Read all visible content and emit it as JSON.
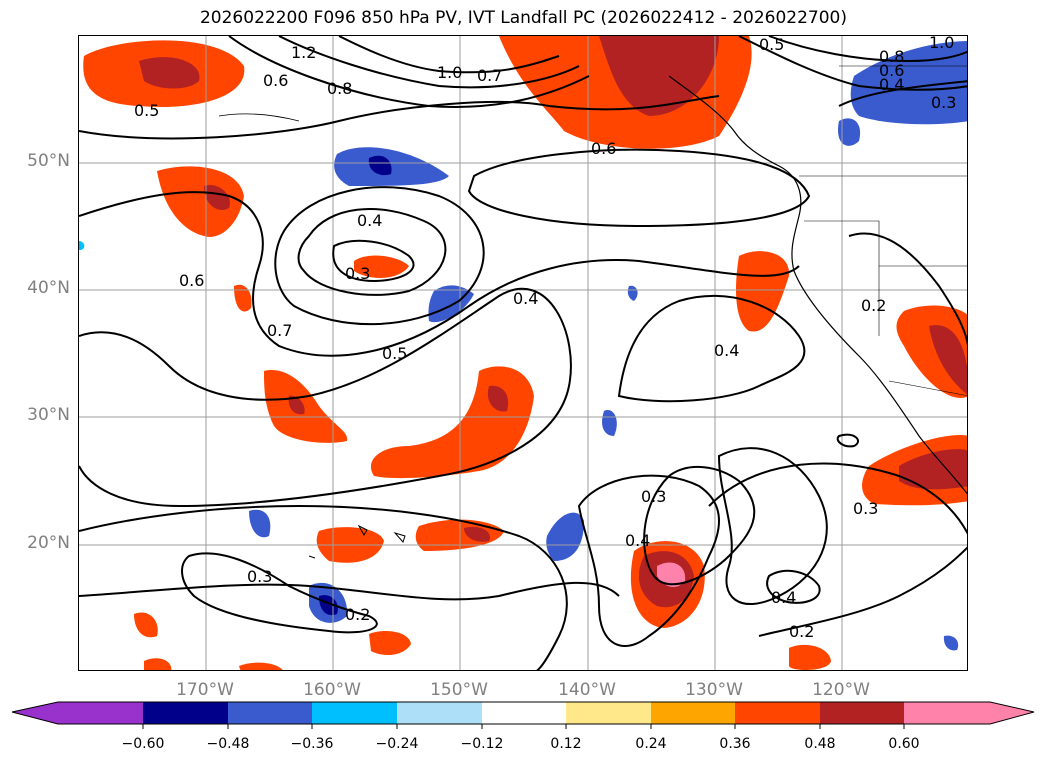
{
  "title": "2026022200 F096 850 hPa PV, IVT Landfall PC (2026022412 - 2026022700)",
  "map": {
    "projection": "plate-carree",
    "lon_range": [
      -180,
      -110
    ],
    "lat_range": [
      10,
      60
    ],
    "lat_labels": [
      {
        "value": 50,
        "text": "50°N"
      },
      {
        "value": 40,
        "text": "40°N"
      },
      {
        "value": 30,
        "text": "30°N"
      },
      {
        "value": 20,
        "text": "20°N"
      }
    ],
    "lon_labels": [
      {
        "value": -170,
        "text": "170°W"
      },
      {
        "value": -160,
        "text": "160°W"
      },
      {
        "value": -150,
        "text": "150°W"
      },
      {
        "value": -140,
        "text": "140°W"
      },
      {
        "value": -130,
        "text": "130°W"
      },
      {
        "value": -120,
        "text": "120°W"
      }
    ],
    "grid": true,
    "contour_labels": [
      "1.2",
      "0.8",
      "1.0",
      "0.7",
      "0.5",
      "0.6",
      "1.0",
      "0.8",
      "0.6",
      "0.4",
      "0.3",
      "0.5",
      "0.6",
      "0.4",
      "0.3",
      "0.6",
      "0.7",
      "0.4",
      "0.5",
      "0.4",
      "0.2",
      "0.3",
      "0.4",
      "0.3",
      "0.2",
      "0.4",
      "0.2",
      "0.3"
    ]
  },
  "colorbar": {
    "colors": [
      "#9932CC",
      "#00008B",
      "#3A5BCE",
      "#00BFFF",
      "#ADE0F8",
      "#FFFFFF",
      "#FFE88A",
      "#FFA500",
      "#FF4500",
      "#B22222",
      "#FF82AB"
    ],
    "ticks": [
      "−0.60",
      "−0.48",
      "−0.36",
      "−0.24",
      "−0.12",
      "0.12",
      "0.24",
      "0.36",
      "0.48",
      "0.60"
    ],
    "extend": "both"
  }
}
